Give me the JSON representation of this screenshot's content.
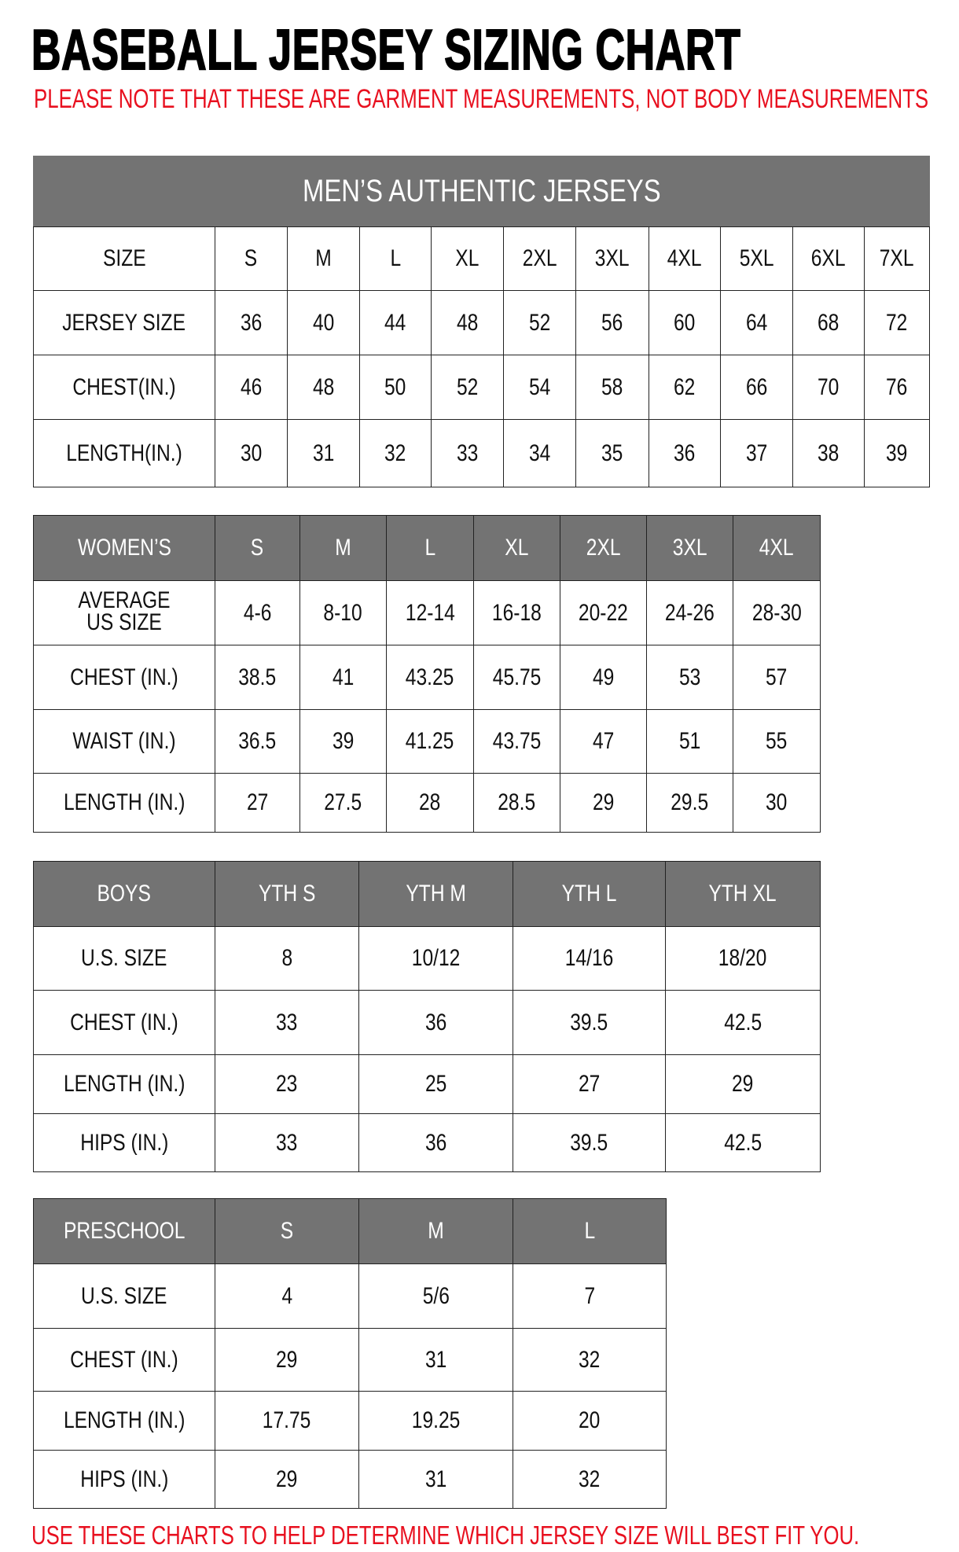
{
  "title": "BASEBALL JERSEY SIZING CHART",
  "note": "PLEASE NOTE THAT THESE ARE GARMENT MEASUREMENTS, NOT BODY MEASUREMENTS",
  "footer": "USE THESE CHARTS TO HELP DETERMINE WHICH JERSEY SIZE WILL BEST FIT YOU.",
  "colors": {
    "header_bg": "#737373",
    "note_red": "#e8101f"
  },
  "tables": [
    {
      "id": "mens",
      "caption": "MEN’S AUTHENTIC JERSEYS",
      "header_style": "plain",
      "rows": [
        [
          "SIZE",
          "S",
          "M",
          "L",
          "XL",
          "2XL",
          "3XL",
          "4XL",
          "5XL",
          "6XL",
          "7XL"
        ],
        [
          "JERSEY SIZE",
          "36",
          "40",
          "44",
          "48",
          "52",
          "56",
          "60",
          "64",
          "68",
          "72"
        ],
        [
          "CHEST(IN.)",
          "46",
          "48",
          "50",
          "52",
          "54",
          "58",
          "62",
          "66",
          "70",
          "76"
        ],
        [
          "LENGTH(IN.)",
          "30",
          "31",
          "32",
          "33",
          "34",
          "35",
          "36",
          "37",
          "38",
          "39"
        ]
      ]
    },
    {
      "id": "womens",
      "header_style": "gray",
      "rows": [
        [
          "WOMEN’S",
          "S",
          "M",
          "L",
          "XL",
          "2XL",
          "3XL",
          "4XL"
        ],
        [
          "AVERAGE US SIZE",
          "4-6",
          "8-10",
          "12-14",
          "16-18",
          "20-22",
          "24-26",
          "28-30"
        ],
        [
          "CHEST (IN.)",
          "38.5",
          "41",
          "43.25",
          "45.75",
          "49",
          "53",
          "57"
        ],
        [
          "WAIST (IN.)",
          "36.5",
          "39",
          "41.25",
          "43.75",
          "47",
          "51",
          "55"
        ],
        [
          "LENGTH (IN.)",
          "27",
          "27.5",
          "28",
          "28.5",
          "29",
          "29.5",
          "30"
        ]
      ]
    },
    {
      "id": "boys",
      "header_style": "gray",
      "rows": [
        [
          "BOYS",
          "YTH S",
          "YTH M",
          "YTH L",
          "YTH XL"
        ],
        [
          "U.S. SIZE",
          "8",
          "10/12",
          "14/16",
          "18/20"
        ],
        [
          "CHEST (IN.)",
          "33",
          "36",
          "39.5",
          "42.5"
        ],
        [
          "LENGTH (IN.)",
          "23",
          "25",
          "27",
          "29"
        ],
        [
          "HIPS (IN.)",
          "33",
          "36",
          "39.5",
          "42.5"
        ]
      ]
    },
    {
      "id": "preschool",
      "header_style": "gray",
      "rows": [
        [
          "PRESCHOOL",
          "S",
          "M",
          "L"
        ],
        [
          "U.S. SIZE",
          "4",
          "5/6",
          "7"
        ],
        [
          "CHEST (IN.)",
          "29",
          "31",
          "32"
        ],
        [
          "LENGTH (IN.)",
          "17.75",
          "19.25",
          "20"
        ],
        [
          "HIPS (IN.)",
          "29",
          "31",
          "32"
        ]
      ]
    }
  ]
}
